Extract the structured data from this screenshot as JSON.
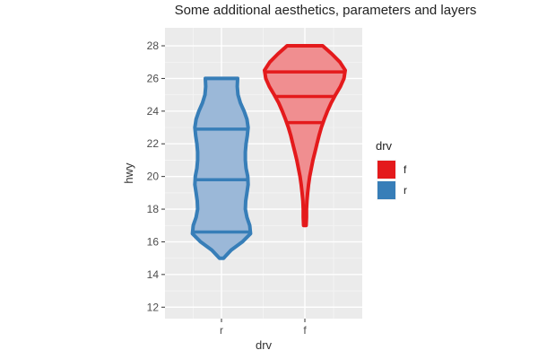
{
  "chart_data": {
    "type": "violin",
    "title": "Some additional aesthetics, parameters and layers",
    "xlabel": "drv",
    "ylabel": "hwy",
    "categories": [
      "r",
      "f"
    ],
    "ylim": [
      11.3,
      29.1
    ],
    "yticks": [
      12,
      14,
      16,
      18,
      20,
      22,
      24,
      26,
      28
    ],
    "grid": true,
    "legend": {
      "title": "drv",
      "position": "right",
      "entries": [
        "f",
        "r"
      ]
    },
    "series": [
      {
        "name": "r",
        "color": "#377EB8",
        "fill": "#9BB8D8",
        "quantiles": [
          16.6,
          19.8,
          22.9
        ],
        "profile": [
          [
            15.0,
            0.05
          ],
          [
            15.5,
            0.24
          ],
          [
            16.0,
            0.52
          ],
          [
            16.5,
            0.72
          ],
          [
            17.0,
            0.7
          ],
          [
            17.5,
            0.63
          ],
          [
            18.0,
            0.59
          ],
          [
            18.5,
            0.6
          ],
          [
            19.0,
            0.63
          ],
          [
            19.5,
            0.66
          ],
          [
            20.0,
            0.65
          ],
          [
            20.5,
            0.61
          ],
          [
            21.0,
            0.59
          ],
          [
            21.5,
            0.59
          ],
          [
            22.0,
            0.61
          ],
          [
            22.5,
            0.64
          ],
          [
            23.0,
            0.66
          ],
          [
            23.5,
            0.63
          ],
          [
            24.0,
            0.56
          ],
          [
            24.5,
            0.47
          ],
          [
            25.0,
            0.41
          ],
          [
            25.5,
            0.39
          ],
          [
            26.0,
            0.4
          ]
        ]
      },
      {
        "name": "f",
        "color": "#E41A1C",
        "fill": "#F08E90",
        "quantiles": [
          23.3,
          24.9,
          26.4
        ],
        "profile": [
          [
            17.0,
            0.03
          ],
          [
            17.5,
            0.04
          ],
          [
            18.0,
            0.04
          ],
          [
            18.5,
            0.05
          ],
          [
            19.0,
            0.07
          ],
          [
            19.5,
            0.09
          ],
          [
            20.0,
            0.12
          ],
          [
            20.5,
            0.16
          ],
          [
            21.0,
            0.2
          ],
          [
            21.5,
            0.25
          ],
          [
            22.0,
            0.3
          ],
          [
            22.5,
            0.35
          ],
          [
            23.0,
            0.41
          ],
          [
            23.5,
            0.48
          ],
          [
            24.0,
            0.56
          ],
          [
            24.5,
            0.65
          ],
          [
            25.0,
            0.76
          ],
          [
            25.5,
            0.88
          ],
          [
            26.0,
            0.97
          ],
          [
            26.5,
            1.0
          ],
          [
            27.0,
            0.87
          ],
          [
            27.5,
            0.67
          ],
          [
            28.0,
            0.44
          ]
        ]
      }
    ]
  }
}
